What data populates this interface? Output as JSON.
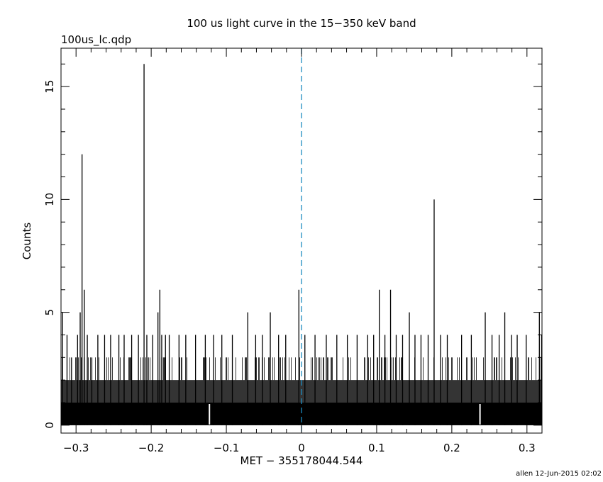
{
  "chart_data": {
    "type": "bar",
    "title": "100 us light curve in the 15−350 keV band",
    "subtitle": "100us_lc.qdp",
    "xlabel": "MET − 355178044.544",
    "ylabel": "Counts",
    "xlim": [
      -0.32,
      0.32
    ],
    "ylim": [
      -0.35,
      16.7
    ],
    "x_ticks": [
      -0.3,
      -0.2,
      -0.1,
      0,
      0.1,
      0.2,
      0.3
    ],
    "x_tick_labels": [
      "−0.3",
      "−0.2",
      "−0.1",
      "0",
      "0.1",
      "0.2",
      "0.3"
    ],
    "y_ticks": [
      0,
      5,
      10,
      15
    ],
    "y_tick_labels": [
      "0",
      "5",
      "10",
      "15"
    ],
    "bin_width": 0.0001,
    "baseline_level": 2,
    "trigger_line_x": 0,
    "trigger_line_color": "#1b8bbf",
    "bar_color": "#000000",
    "series": [
      {
        "x": [
          -0.318,
          -0.312,
          -0.306,
          -0.298,
          -0.2945,
          -0.292,
          -0.289,
          -0.285,
          -0.279,
          -0.271,
          -0.262,
          -0.254,
          -0.243,
          -0.236,
          -0.226,
          -0.217,
          -0.2095,
          -0.2058,
          -0.198,
          -0.191,
          -0.1885,
          -0.186,
          -0.181,
          -0.176,
          -0.163,
          -0.154,
          -0.141,
          -0.128,
          -0.117,
          -0.106,
          -0.092,
          -0.0715,
          -0.061,
          -0.052,
          -0.0415,
          -0.0305,
          -0.021,
          -0.0035,
          0.0045,
          0.018,
          0.033,
          0.047,
          0.061,
          0.074,
          0.088,
          0.096,
          0.1035,
          0.111,
          0.1185,
          0.126,
          0.1345,
          0.1435,
          0.151,
          0.159,
          0.1685,
          0.1765,
          0.185,
          0.194,
          0.213,
          0.226,
          0.2445,
          0.2535,
          0.263,
          0.2705,
          0.2795,
          0.287,
          0.299,
          0.3165,
          0.3195
        ],
        "values": [
          5,
          4,
          3,
          4,
          5,
          12,
          6,
          4,
          3,
          4,
          4,
          4,
          4,
          4,
          4,
          4,
          16,
          4,
          4,
          5,
          6,
          4,
          4,
          4,
          4,
          4,
          4,
          4,
          4,
          4,
          4,
          5,
          4,
          4,
          5,
          4,
          4,
          6,
          4,
          4,
          4,
          4,
          4,
          4,
          4,
          4,
          6,
          4,
          6,
          4,
          4,
          5,
          4,
          4,
          4,
          10,
          4,
          4,
          4,
          4,
          5,
          4,
          4,
          5,
          4,
          4,
          4,
          5,
          4
        ]
      }
    ]
  },
  "footer_credit": "allen 12-Jun-2015 02:02"
}
